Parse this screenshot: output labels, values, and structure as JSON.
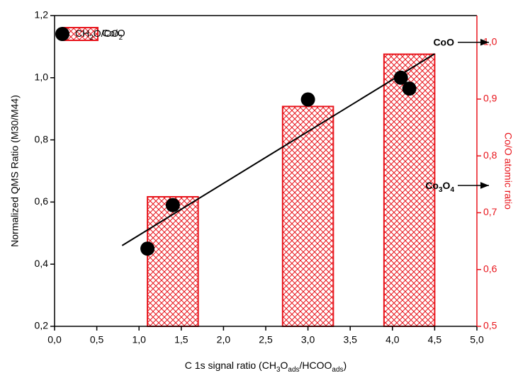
{
  "chart_data": {
    "type": "scatter",
    "x_label": [
      "C 1s signal ratio (CH",
      {
        "text": "3",
        "sub": true
      },
      "O",
      {
        "text": "ads",
        "sub": true
      },
      "/HCOO",
      {
        "text": "ads",
        "sub": true
      },
      ")"
    ],
    "y_label": "Normalized QMS Ratio (M30/M44)",
    "y2_label": "Co/O atomic ratio",
    "xlim": [
      0,
      5
    ],
    "xticks": [
      {
        "value": 0,
        "label": "0,0"
      },
      {
        "value": 0.5,
        "label": "0,5"
      },
      {
        "value": 1,
        "label": "1,0"
      },
      {
        "value": 1.5,
        "label": "1,5"
      },
      {
        "value": 2,
        "label": "2,0"
      },
      {
        "value": 2.5,
        "label": "2,5"
      },
      {
        "value": 3,
        "label": "3,0"
      },
      {
        "value": 3.5,
        "label": "3,5"
      },
      {
        "value": 4,
        "label": "4,0"
      },
      {
        "value": 4.5,
        "label": "4,5"
      },
      {
        "value": 5,
        "label": "5,0"
      }
    ],
    "ylim": [
      0.2,
      1.2
    ],
    "yticks": [
      {
        "value": 0.2,
        "label": "0,2"
      },
      {
        "value": 0.4,
        "label": "0,4"
      },
      {
        "value": 0.6,
        "label": "0,6"
      },
      {
        "value": 0.8,
        "label": "0,8"
      },
      {
        "value": 1.0,
        "label": "1,0"
      },
      {
        "value": 1.2,
        "label": "1,2"
      }
    ],
    "y2lim": [
      0.5,
      1.047
    ],
    "y2ticks": [
      {
        "value": 0.5,
        "label": "0,5"
      },
      {
        "value": 0.6,
        "label": "0,6"
      },
      {
        "value": 0.7,
        "label": "0,7"
      },
      {
        "value": 0.8,
        "label": "0,8"
      },
      {
        "value": 0.9,
        "label": "0,9"
      },
      {
        "value": 1.0,
        "label": "1,0"
      }
    ],
    "y2_color": "#e8141b",
    "series": [
      {
        "type": "bar",
        "name": "Co/O",
        "color": "#e8141b",
        "axis": "y2",
        "pattern": "crosshatch",
        "bar_width": 0.6,
        "x": [
          1.4,
          3.0,
          4.2
        ],
        "values": [
          0.728,
          0.887,
          0.979
        ]
      },
      {
        "type": "line",
        "color": "#000000",
        "x": [
          0.8,
          4.5
        ],
        "values": [
          0.46,
          1.077
        ]
      },
      {
        "type": "scatter",
        "name": [
          "CH",
          {
            "text": "2",
            "sub": true
          },
          "O/CO",
          {
            "text": "2",
            "sub": true
          }
        ],
        "color": "#000000",
        "x": [
          1.1,
          1.4,
          3.0,
          4.1,
          4.2
        ],
        "values": [
          0.45,
          0.59,
          0.93,
          1.0,
          0.965
        ]
      }
    ],
    "annotations": [
      {
        "text": [
          "CoO"
        ],
        "y2": 1.0
      },
      {
        "text": [
          "Co",
          {
            "text": "3",
            "sub": true
          },
          "O",
          {
            "text": "4",
            "sub": true
          }
        ],
        "y2": 0.748
      }
    ]
  }
}
